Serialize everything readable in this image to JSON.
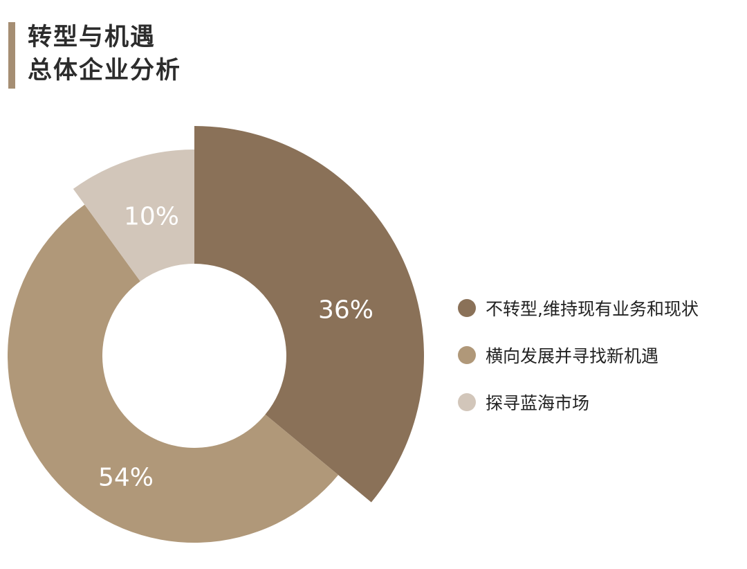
{
  "header": {
    "title_line1": "转型与机遇",
    "title_line2": "总体企业分析"
  },
  "colors": {
    "accent_bar": "#a58e73",
    "text": "#2c2c2c"
  },
  "chart_data": {
    "type": "pie",
    "subtype": "donut",
    "title": "转型与机遇 总体企业分析",
    "slices": [
      {
        "label": "不转型,维持现有业务和现状",
        "value": 36,
        "display": "36%",
        "color": "#8a7158",
        "exploded": true
      },
      {
        "label": "横向发展并寻找新机遇",
        "value": 54,
        "display": "54%",
        "color": "#b09879",
        "exploded": false
      },
      {
        "label": "探寻蓝海市场",
        "value": 10,
        "display": "10%",
        "color": "#d2c6ba",
        "exploded": false
      }
    ],
    "unit": "%",
    "legend_position": "right"
  }
}
